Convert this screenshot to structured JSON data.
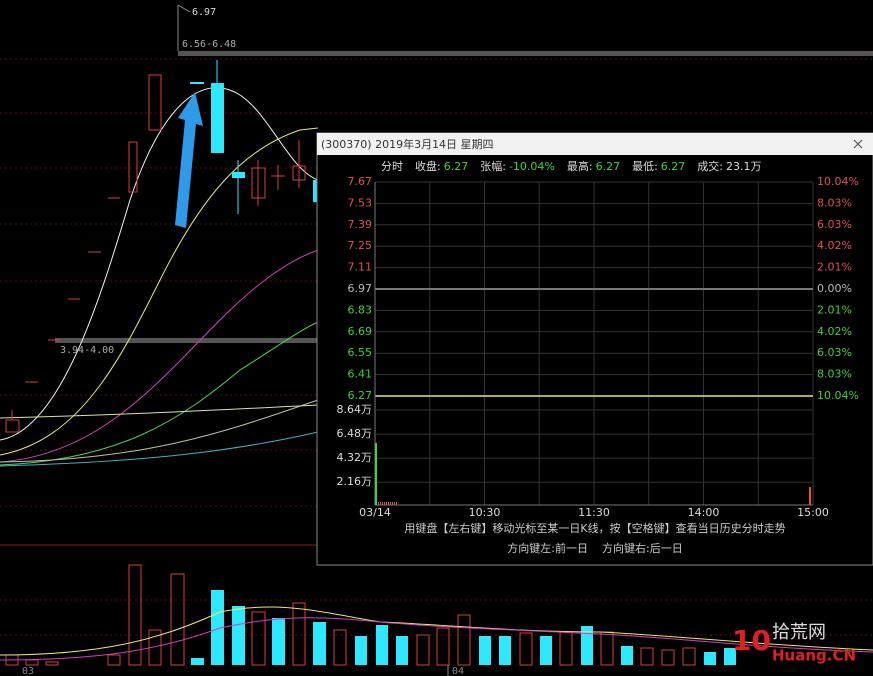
{
  "background": {
    "peak_label": "6.97",
    "upper_band_label": "6.56-6.48",
    "lower_band_label": "3.94-4.00",
    "x_labels": [
      "03",
      "04"
    ]
  },
  "popup": {
    "title": "(300370) 2019年3月14日 星期四",
    "info": [
      "分时",
      "收盘:",
      "6.27",
      "张幅:",
      "-10.04%",
      "最高:",
      "6.27",
      "最低:",
      "6.27",
      "成交:",
      "23.1万"
    ],
    "price_labels": [
      "7.67",
      "7.53",
      "7.39",
      "7.25",
      "7.11",
      "6.97",
      "6.83",
      "6.69",
      "6.55",
      "6.41",
      "6.27"
    ],
    "percent_labels": [
      "10.04%",
      "8.03%",
      "6.03%",
      "4.02%",
      "2.01%",
      "0.00%",
      "2.01%",
      "4.02%",
      "6.03%",
      "8.03%",
      "10.04%"
    ],
    "volume_labels": [
      "8.64万",
      "6.48万",
      "4.32万",
      "2.16万"
    ],
    "time_labels": [
      "03/14",
      "10:30",
      "11:30",
      "14:00",
      "15:00"
    ],
    "hint_lines": [
      "用键盘【左右键】移动光标至某一日K线，按【空格键】查看当日历史分时走势",
      "方向键左:前一日    方向键右:后一日"
    ]
  },
  "watermark": {
    "logo": "10",
    "site": "Huang.CN",
    "brand": "拾荒网"
  }
}
